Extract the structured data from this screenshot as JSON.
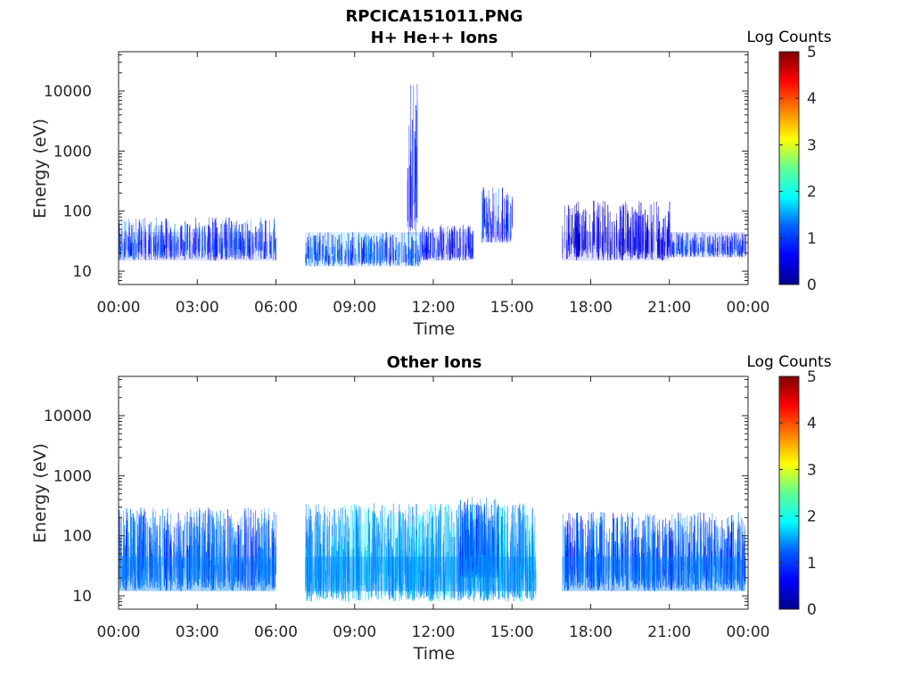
{
  "figure": {
    "title_line1": "RPCICA151011.PNG"
  },
  "colormap": [
    "#00008f",
    "#0000ff",
    "#0080ff",
    "#00ffff",
    "#80ff80",
    "#ffff00",
    "#ff8000",
    "#ff0000",
    "#800000"
  ],
  "chart_data": [
    {
      "type": "heatmap",
      "title": "H+ He++ Ions",
      "xlabel": "Time",
      "ylabel": "Energy (eV)",
      "x_ticks": [
        "00:00",
        "03:00",
        "06:00",
        "09:00",
        "12:00",
        "15:00",
        "18:00",
        "21:00",
        "00:00"
      ],
      "x_range_hours": [
        0,
        24
      ],
      "y_scale": "log",
      "y_range_eV": [
        6,
        45000
      ],
      "y_ticks": [
        "10",
        "100",
        "1000",
        "10000"
      ],
      "colorbar_label": "Log Counts",
      "colorbar_ticks": [
        "0",
        "1",
        "2",
        "3",
        "4",
        "5"
      ],
      "color_range": [
        0,
        5
      ],
      "data_gaps_hours": [
        [
          6.0,
          7.1
        ],
        [
          15.9,
          16.9
        ]
      ],
      "regions": [
        {
          "t_start": 0.0,
          "t_end": 6.0,
          "e_min_eV": 15,
          "e_max_eV": 80,
          "log_counts": 0.9
        },
        {
          "t_start": 7.1,
          "t_end": 11.5,
          "e_min_eV": 12,
          "e_max_eV": 45,
          "log_counts": 1.0
        },
        {
          "t_start": 11.0,
          "t_end": 11.4,
          "e_min_eV": 40,
          "e_max_eV": 14000,
          "log_counts": 0.8
        },
        {
          "t_start": 11.5,
          "t_end": 13.5,
          "e_min_eV": 15,
          "e_max_eV": 60,
          "log_counts": 0.7
        },
        {
          "t_start": 13.8,
          "t_end": 15.0,
          "e_min_eV": 30,
          "e_max_eV": 250,
          "log_counts": 0.8
        },
        {
          "t_start": 16.9,
          "t_end": 21.0,
          "e_min_eV": 15,
          "e_max_eV": 150,
          "log_counts": 0.5
        },
        {
          "t_start": 21.0,
          "t_end": 23.9,
          "e_min_eV": 17,
          "e_max_eV": 45,
          "log_counts": 0.9
        }
      ]
    },
    {
      "type": "heatmap",
      "title": "Other Ions",
      "xlabel": "Time",
      "ylabel": "Energy (eV)",
      "x_ticks": [
        "00:00",
        "03:00",
        "06:00",
        "09:00",
        "12:00",
        "15:00",
        "18:00",
        "21:00",
        "00:00"
      ],
      "x_range_hours": [
        0,
        24
      ],
      "y_scale": "log",
      "y_range_eV": [
        6,
        45000
      ],
      "y_ticks": [
        "10",
        "100",
        "1000",
        "10000"
      ],
      "colorbar_label": "Log Counts",
      "colorbar_ticks": [
        "0",
        "1",
        "2",
        "3",
        "4",
        "5"
      ],
      "color_range": [
        0,
        5
      ],
      "data_gaps_hours": [
        [
          6.0,
          7.1
        ],
        [
          15.9,
          16.9
        ]
      ],
      "regions": [
        {
          "t_start": 0.0,
          "t_end": 6.0,
          "e_min_eV": 12,
          "e_max_eV": 300,
          "log_counts": 1.2
        },
        {
          "t_start": 7.1,
          "t_end": 15.9,
          "e_min_eV": 8,
          "e_max_eV": 350,
          "log_counts": 1.4
        },
        {
          "t_start": 13.0,
          "t_end": 14.5,
          "e_min_eV": 20,
          "e_max_eV": 450,
          "log_counts": 1.2
        },
        {
          "t_start": 16.9,
          "t_end": 23.9,
          "e_min_eV": 12,
          "e_max_eV": 250,
          "log_counts": 1.1
        }
      ]
    }
  ]
}
